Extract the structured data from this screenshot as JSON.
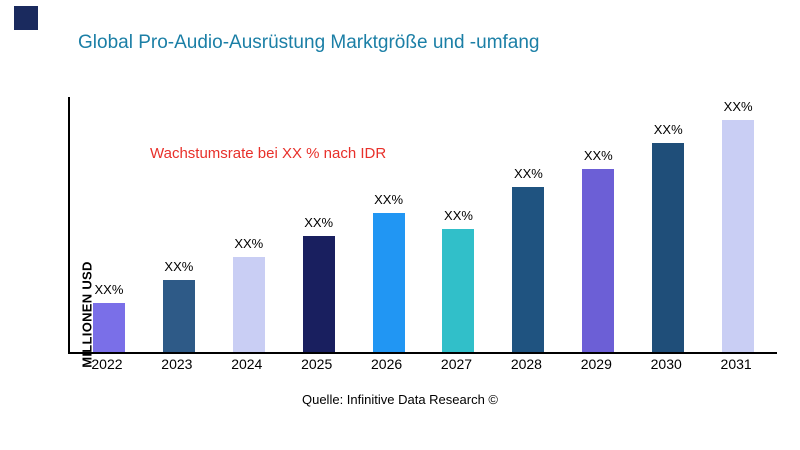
{
  "logo": {
    "color": "#1a2a5e"
  },
  "title": "Global Pro-Audio-Ausrüstung Marktgröße und -umfang",
  "title_color": "#1b7fa6",
  "annotation": {
    "text": "Wachstumsrate bei XX % nach IDR",
    "color": "#e8302a"
  },
  "source": "Quelle: Infinitive Data Research ©",
  "chart_data": {
    "type": "bar",
    "title": "Global Pro-Audio-Ausrüstung Marktgröße und -umfang",
    "xlabel": "",
    "ylabel": "MILLIONEN USD",
    "ylim": [
      0,
      110
    ],
    "grid": false,
    "legend": "none",
    "categories": [
      "2022",
      "2023",
      "2024",
      "2025",
      "2026",
      "2027",
      "2028",
      "2029",
      "2030",
      "2031"
    ],
    "values": [
      21,
      31,
      41,
      50,
      60,
      53,
      71,
      79,
      90,
      100
    ],
    "bar_labels": [
      "XX%",
      "XX%",
      "XX%",
      "XX%",
      "XX%",
      "XX%",
      "XX%",
      "XX%",
      "XX%",
      "XX%"
    ],
    "bar_colors": [
      "#7a6fe8",
      "#2e5a87",
      "#c9cef4",
      "#191f5f",
      "#2196f3",
      "#31bfc9",
      "#1f5380",
      "#6c5fd6",
      "#1f4e79",
      "#c9cef4"
    ]
  }
}
